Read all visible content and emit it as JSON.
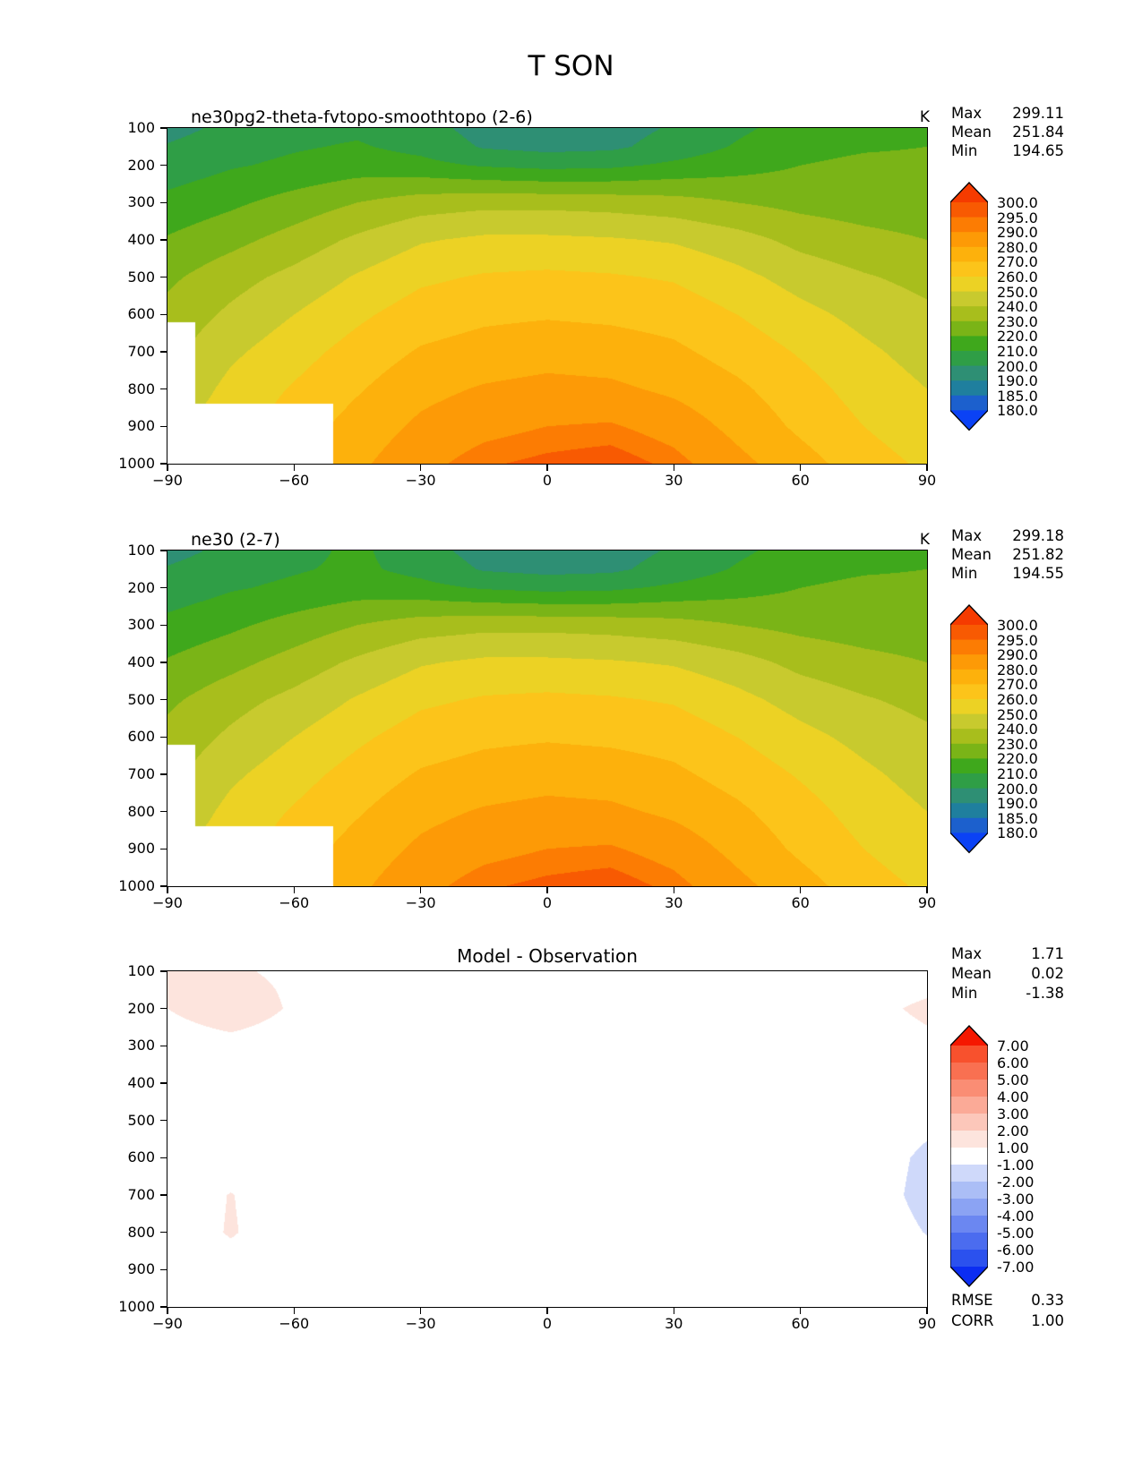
{
  "figure": {
    "title": "T SON"
  },
  "axes": {
    "x_ticks": [
      {
        "v": -90,
        "label": "−90"
      },
      {
        "v": -60,
        "label": "−60"
      },
      {
        "v": -30,
        "label": "−30"
      },
      {
        "v": 0,
        "label": "0"
      },
      {
        "v": 30,
        "label": "30"
      },
      {
        "v": 60,
        "label": "60"
      },
      {
        "v": 90,
        "label": "90"
      }
    ],
    "y_ticks": [
      {
        "v": 100,
        "label": "100"
      },
      {
        "v": 200,
        "label": "200"
      },
      {
        "v": 300,
        "label": "300"
      },
      {
        "v": 400,
        "label": "400"
      },
      {
        "v": 500,
        "label": "500"
      },
      {
        "v": 600,
        "label": "600"
      },
      {
        "v": 700,
        "label": "700"
      },
      {
        "v": 800,
        "label": "800"
      },
      {
        "v": 900,
        "label": "900"
      },
      {
        "v": 1000,
        "label": "1000"
      }
    ]
  },
  "chart_data": [
    {
      "type": "heatmap",
      "title": "ne30pg2-theta-fvtopo-smoothtopo (2-6)",
      "unit": "K",
      "stats": {
        "rows": [
          {
            "label": "Max",
            "value": "299.11"
          },
          {
            "label": "Mean",
            "value": "251.84"
          },
          {
            "label": "Min",
            "value": "194.65"
          }
        ]
      },
      "x_name": "latitude_deg",
      "y_name": "pressure_hPa",
      "x_range": [
        -90,
        90
      ],
      "y_range": [
        100,
        1000
      ],
      "x": [
        -90,
        -75,
        -60,
        -45,
        -30,
        -15,
        0,
        15,
        30,
        45,
        60,
        75,
        90
      ],
      "y": [
        100,
        150,
        200,
        300,
        400,
        500,
        600,
        700,
        800,
        900,
        1000
      ],
      "values": [
        [
          196,
          203,
          207,
          208,
          204,
          196,
          194.7,
          196,
          201,
          208,
          214,
          217,
          218
        ],
        [
          201,
          206,
          209,
          211,
          207,
          199,
          197,
          198,
          204,
          211,
          217,
          219,
          220
        ],
        [
          204,
          209,
          212,
          215,
          213,
          209,
          207,
          208,
          212,
          216,
          220,
          222,
          222
        ],
        [
          213,
          218,
          224,
          230,
          235,
          237,
          237,
          236,
          234,
          230,
          227,
          225,
          224
        ],
        [
          221,
          227,
          234,
          242,
          249,
          252,
          252,
          251,
          249,
          244,
          237,
          233,
          230
        ],
        [
          228,
          236,
          243,
          251,
          258,
          261,
          262,
          261,
          259,
          253,
          246,
          241,
          237
        ],
        [
          233,
          242,
          250,
          258,
          265,
          268,
          269,
          268,
          266,
          260,
          253,
          247,
          242
        ],
        [
          237,
          248,
          256,
          264,
          271,
          274,
          276,
          275,
          272,
          266,
          259,
          252,
          246
        ],
        [
          241,
          253,
          261,
          269,
          277,
          281,
          283,
          282,
          278,
          272,
          264,
          256,
          250
        ],
        [
          248,
          256,
          265,
          274,
          282,
          287,
          290,
          291,
          286,
          277,
          268,
          260,
          253
        ],
        [
          253,
          261,
          269,
          278,
          287,
          294,
          297,
          299,
          293,
          283,
          274,
          265,
          258
        ]
      ],
      "levels": [
        180,
        185,
        190,
        200,
        210,
        220,
        230,
        240,
        250,
        260,
        270,
        280,
        290,
        295,
        300
      ],
      "band_colors": [
        "#0b42f5",
        "#1c60cd",
        "#1f7f9e",
        "#2e8f74",
        "#2f9e46",
        "#3fa81c",
        "#7ab417",
        "#a8be1c",
        "#c8ca2e",
        "#ecd224",
        "#fcc41a",
        "#fdb10c",
        "#fd9a06",
        "#fc7c03",
        "#f85a02",
        "#f53b00"
      ],
      "colorbar_labels": [
        "300.0",
        "295.0",
        "290.0",
        "280.0",
        "270.0",
        "260.0",
        "250.0",
        "240.0",
        "230.0",
        "220.0",
        "210.0",
        "200.0",
        "190.0",
        "185.0",
        "180.0"
      ],
      "mask_steps": [
        {
          "lat_max": -83.5,
          "surface_p": 620
        },
        {
          "lat_max": -50.8,
          "surface_p": 838
        }
      ]
    },
    {
      "type": "heatmap",
      "title": "ne30 (2-7)",
      "unit": "K",
      "stats": {
        "rows": [
          {
            "label": "Max",
            "value": "299.18"
          },
          {
            "label": "Mean",
            "value": "251.82"
          },
          {
            "label": "Min",
            "value": "194.55"
          }
        ]
      },
      "x_name": "latitude_deg",
      "y_name": "pressure_hPa",
      "x_range": [
        -90,
        90
      ],
      "y_range": [
        100,
        1000
      ],
      "x": [
        -90,
        -75,
        -60,
        -45,
        -30,
        -15,
        0,
        15,
        30,
        45,
        60,
        75,
        90
      ],
      "y": [
        100,
        150,
        200,
        300,
        400,
        500,
        600,
        700,
        800,
        900,
        1000
      ],
      "values": [
        [
          196,
          203,
          207,
          212,
          204,
          196,
          194.6,
          196,
          201,
          208,
          214,
          217,
          218
        ],
        [
          201,
          206,
          209,
          212,
          207,
          199,
          197,
          198,
          204,
          211,
          217,
          219,
          220
        ],
        [
          204,
          209,
          212,
          215,
          213,
          209,
          207,
          208,
          212,
          216,
          220,
          222,
          222
        ],
        [
          213,
          218,
          224,
          230,
          235,
          237,
          237,
          236,
          234,
          230,
          227,
          225,
          224
        ],
        [
          221,
          227,
          234,
          242,
          249,
          252,
          252,
          251,
          249,
          244,
          237,
          233,
          230
        ],
        [
          228,
          236,
          243,
          251,
          258,
          261,
          262,
          261,
          259,
          253,
          246,
          241,
          237
        ],
        [
          233,
          242,
          250,
          258,
          265,
          268,
          269,
          268,
          266,
          260,
          253,
          247,
          242
        ],
        [
          237,
          248,
          256,
          264,
          271,
          274,
          276,
          275,
          272,
          266,
          259,
          252,
          246
        ],
        [
          241,
          253,
          261,
          269,
          277,
          281,
          283,
          282,
          278,
          272,
          264,
          256,
          250
        ],
        [
          248,
          256,
          265,
          274,
          282,
          287,
          290,
          291,
          286,
          277,
          268,
          260,
          253
        ],
        [
          253,
          261,
          269,
          278,
          287,
          294,
          297,
          299,
          293,
          283,
          274,
          265,
          258
        ]
      ],
      "levels": [
        180,
        185,
        190,
        200,
        210,
        220,
        230,
        240,
        250,
        260,
        270,
        280,
        290,
        295,
        300
      ],
      "band_colors": [
        "#0b42f5",
        "#1c60cd",
        "#1f7f9e",
        "#2e8f74",
        "#2f9e46",
        "#3fa81c",
        "#7ab417",
        "#a8be1c",
        "#c8ca2e",
        "#ecd224",
        "#fcc41a",
        "#fdb10c",
        "#fd9a06",
        "#fc7c03",
        "#f85a02",
        "#f53b00"
      ],
      "colorbar_labels": [
        "300.0",
        "295.0",
        "290.0",
        "280.0",
        "270.0",
        "260.0",
        "250.0",
        "240.0",
        "230.0",
        "220.0",
        "210.0",
        "200.0",
        "190.0",
        "185.0",
        "180.0"
      ],
      "mask_steps": [
        {
          "lat_max": -83.5,
          "surface_p": 620
        },
        {
          "lat_max": -50.8,
          "surface_p": 838
        }
      ]
    },
    {
      "type": "heatmap",
      "title": "Model - Observation",
      "stats": {
        "rows": [
          {
            "label": "Max",
            "value": "1.71"
          },
          {
            "label": "Mean",
            "value": "0.02"
          },
          {
            "label": "Min",
            "value": "-1.38"
          }
        ]
      },
      "metrics": [
        {
          "label": "RMSE",
          "value": "0.33"
        },
        {
          "label": "CORR",
          "value": "1.00"
        }
      ],
      "x_name": "latitude_deg",
      "y_name": "pressure_hPa",
      "x_range": [
        -90,
        90
      ],
      "y_range": [
        100,
        1000
      ],
      "x": [
        -90,
        -75,
        -60,
        -45,
        -30,
        -15,
        0,
        15,
        30,
        45,
        60,
        75,
        90
      ],
      "y": [
        100,
        150,
        200,
        300,
        400,
        500,
        600,
        700,
        800,
        900,
        1000
      ],
      "values": [
        [
          1.05,
          1.2,
          0.7,
          0.2,
          0.1,
          0.05,
          0,
          0,
          0.05,
          0.1,
          0.2,
          0.3,
          0.5
        ],
        [
          1.1,
          1.5,
          0.8,
          0.25,
          0.1,
          0.05,
          0,
          0,
          0.05,
          0.1,
          0.25,
          0.4,
          0.8
        ],
        [
          1.0,
          1.71,
          0.85,
          0.3,
          0.1,
          0,
          0,
          0,
          0.05,
          0.15,
          0.3,
          0.6,
          1.25
        ],
        [
          0.4,
          0.6,
          0.4,
          0.15,
          0.05,
          0,
          0,
          0,
          0,
          0.1,
          0.2,
          0.3,
          0.7
        ],
        [
          0.2,
          0.25,
          0.15,
          0.05,
          0,
          0,
          0,
          0,
          0,
          0,
          0.1,
          0.1,
          0.1
        ],
        [
          0.15,
          0.15,
          0.1,
          0,
          0,
          0,
          0,
          0,
          0,
          0,
          0,
          -0.1,
          -0.7
        ],
        [
          0.15,
          0.3,
          0.1,
          0,
          0,
          0,
          0,
          0,
          0,
          0,
          0,
          -0.3,
          -1.25
        ],
        [
          0.2,
          1.05,
          0.2,
          0.05,
          0,
          0,
          0,
          0,
          0,
          0,
          0,
          -0.35,
          -1.38
        ],
        [
          0.25,
          1.1,
          0.3,
          0.1,
          0,
          0,
          0,
          0,
          0,
          0,
          0,
          -0.25,
          -1.05
        ],
        [
          0.3,
          0.5,
          0.25,
          0.1,
          0,
          0,
          0,
          0,
          0,
          0,
          0,
          -0.1,
          -0.4
        ],
        [
          0.2,
          0.3,
          0.15,
          0.05,
          0,
          0,
          0,
          0,
          0,
          0,
          0,
          0,
          -0.1
        ]
      ],
      "levels": [
        -7,
        -6,
        -5,
        -4,
        -3,
        -2,
        -1,
        1,
        2,
        3,
        4,
        5,
        6,
        7
      ],
      "band_colors": [
        "#0b2df2",
        "#2b51ee",
        "#4b6cef",
        "#6b87f1",
        "#8ba3f3",
        "#abbef6",
        "#cfd9fa",
        "#ffffff",
        "#fde4dd",
        "#fcc7ba",
        "#fbaa97",
        "#fa8d74",
        "#f97051",
        "#f8512d",
        "#f51800"
      ],
      "colorbar_labels": [
        "7.00",
        "6.00",
        "5.00",
        "4.00",
        "3.00",
        "2.00",
        "1.00",
        "-1.00",
        "-2.00",
        "-3.00",
        "-4.00",
        "-5.00",
        "-6.00",
        "-7.00"
      ],
      "mask_steps": [
        {
          "lat_max": -83.5,
          "surface_p": 620
        },
        {
          "lat_max": -50.8,
          "surface_p": 838
        }
      ]
    }
  ]
}
